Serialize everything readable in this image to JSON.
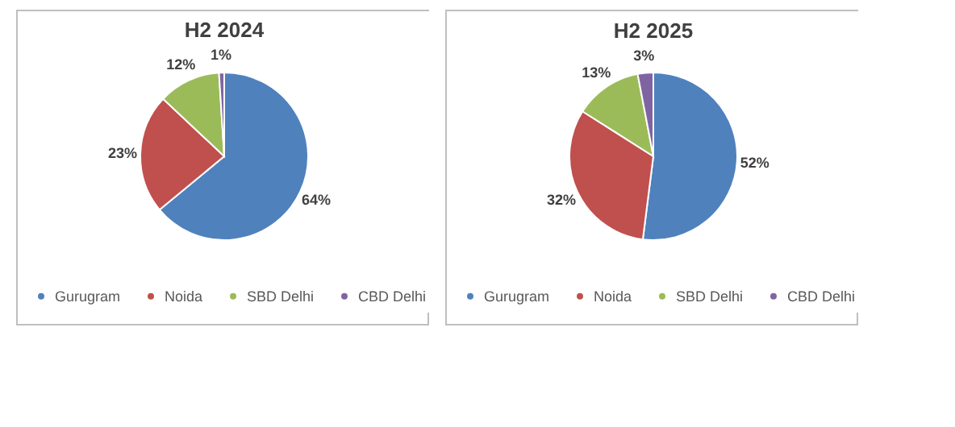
{
  "chart_data": [
    {
      "type": "pie",
      "title": "H2 2024",
      "categories": [
        "Gurugram",
        "Noida",
        "SBD Delhi",
        "CBD Delhi"
      ],
      "values": [
        64,
        23,
        12,
        1
      ],
      "colors": [
        "#4f81bd",
        "#c0504d",
        "#9bbb59",
        "#8064a2"
      ],
      "value_labels": [
        "64%",
        "23%",
        "12%",
        "1%"
      ],
      "legend": "bottom"
    },
    {
      "type": "pie",
      "title": "H2 2025",
      "categories": [
        "Gurugram",
        "Noida",
        "SBD Delhi",
        "CBD Delhi"
      ],
      "values": [
        52,
        32,
        13,
        3
      ],
      "colors": [
        "#4f81bd",
        "#c0504d",
        "#9bbb59",
        "#8064a2"
      ],
      "value_labels": [
        "52%",
        "32%",
        "13%",
        "3%"
      ],
      "legend": "bottom"
    }
  ]
}
